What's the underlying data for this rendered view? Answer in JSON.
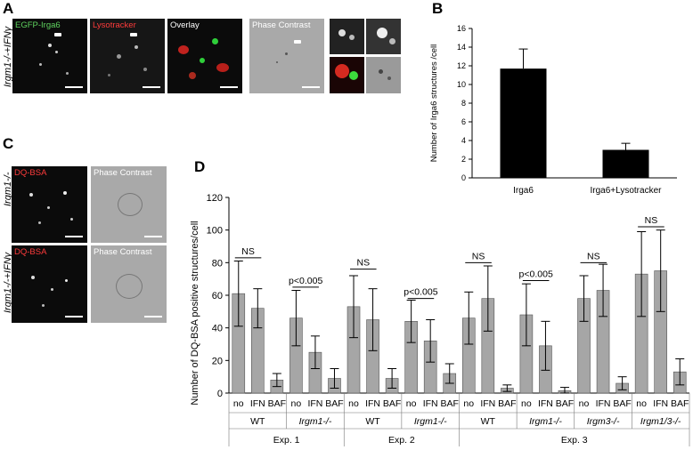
{
  "panels": {
    "A": {
      "letter": "A",
      "row_label": "Irgm1-/-+IFNγ",
      "images": [
        "EGFP-Irga6",
        "Lysotracker",
        "Overlay",
        "Phase Contrast"
      ]
    },
    "C": {
      "letter": "C",
      "rows": [
        {
          "label": "Irgm1-/-",
          "images": [
            "DQ-BSA",
            "Phase Contrast"
          ]
        },
        {
          "label": "Irgm1-/-+IFNγ",
          "images": [
            "DQ-BSA",
            "Phase Contrast"
          ]
        }
      ]
    }
  },
  "chart_data": [
    {
      "panel": "B",
      "type": "bar",
      "ylabel": "Number of Irga6 structures /cell",
      "ylim": [
        0,
        16
      ],
      "yticks": [
        0,
        2,
        4,
        6,
        8,
        10,
        12,
        14,
        16
      ],
      "categories": [
        "Irga6",
        "Irga6+Lysotracker"
      ],
      "values": [
        11.7,
        3.0
      ],
      "errors": [
        2.1,
        0.7
      ],
      "bar_color": "#000000"
    },
    {
      "panel": "D",
      "type": "bar",
      "ylabel": "Number of DQ-BSA positive structures/cell",
      "ylim": [
        0,
        120
      ],
      "yticks": [
        0,
        20,
        40,
        60,
        80,
        100,
        120
      ],
      "categories": [
        "no",
        "IFN",
        "BAF",
        "no",
        "IFN",
        "BAF",
        "no",
        "IFN",
        "BAF",
        "no",
        "IFN",
        "BAF",
        "no",
        "IFN",
        "BAF",
        "no",
        "IFN",
        "BAF",
        "no",
        "IFN",
        "BAF",
        "no",
        "IFN",
        "BAF"
      ],
      "values": [
        61,
        52,
        8,
        46,
        25,
        9,
        53,
        45,
        9,
        44,
        32,
        12,
        46,
        58,
        3,
        48,
        29,
        1.5,
        58,
        63,
        6,
        73,
        75,
        13
      ],
      "errors": [
        20,
        12,
        4,
        17,
        10,
        6,
        19,
        19,
        6,
        13,
        13,
        6,
        16,
        20,
        2,
        19,
        15,
        2,
        14,
        16,
        4,
        26,
        25,
        8
      ],
      "bar_color": "#a6a6a6",
      "genotype_groups": [
        "WT",
        "Irgm1-/-",
        "WT",
        "Irgm1-/-",
        "WT",
        "Irgm1-/-",
        "Irgm3-/-",
        "Irgm1/3-/-"
      ],
      "experiments": [
        "Exp. 1",
        "Exp. 2",
        "Exp. 3"
      ],
      "annotations": [
        {
          "text": "NS",
          "from": 0,
          "to": 1,
          "y": 83
        },
        {
          "text": "p<0.005",
          "from": 3,
          "to": 4,
          "y": 65
        },
        {
          "text": "NS",
          "from": 6,
          "to": 7,
          "y": 76
        },
        {
          "text": "p<0.005",
          "from": 9,
          "to": 10,
          "y": 58
        },
        {
          "text": "NS",
          "from": 12,
          "to": 13,
          "y": 80
        },
        {
          "text": "p<0.005",
          "from": 15,
          "to": 16,
          "y": 69
        },
        {
          "text": "NS",
          "from": 18,
          "to": 19,
          "y": 80
        },
        {
          "text": "NS",
          "from": 21,
          "to": 22,
          "y": 102
        }
      ]
    }
  ]
}
